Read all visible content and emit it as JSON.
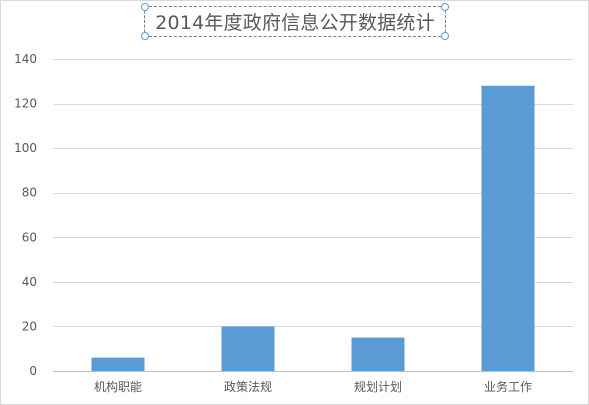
{
  "chart_data": {
    "type": "bar",
    "title": "2014年度政府信息公开数据统计",
    "categories": [
      "机构职能",
      "政策法规",
      "规划计划",
      "业务工作"
    ],
    "values": [
      6,
      20,
      15,
      128
    ],
    "ylim": [
      0,
      140
    ],
    "yticks": [
      0,
      20,
      40,
      60,
      80,
      100,
      120,
      140
    ],
    "xlabel": "",
    "ylabel": "",
    "grid": true,
    "legend": "none",
    "bar_color": "#5b9bd5"
  }
}
